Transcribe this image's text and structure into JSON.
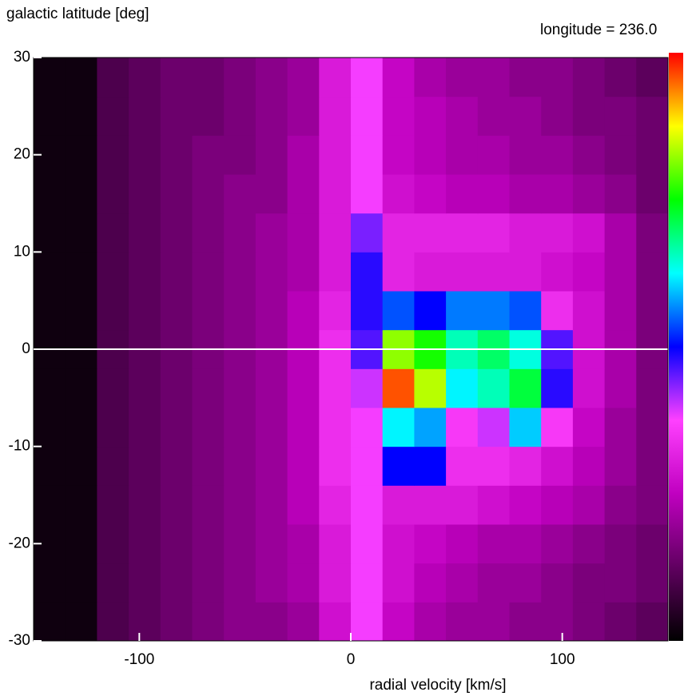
{
  "chart_data": {
    "type": "heatmap",
    "title": "longitude = 236.0",
    "y_label": "galactic latitude [deg]",
    "x_label": "radial velocity [km/s]",
    "title_color": "#1a1aff",
    "xlim": [
      -150,
      150
    ],
    "ylim": [
      -30,
      30
    ],
    "xticks": [
      -100,
      0,
      100
    ],
    "yticks": [
      -30,
      -20,
      -10,
      0,
      10,
      20,
      30
    ],
    "hline": 0,
    "hline_color": "#ffffff",
    "zlim": [
      0,
      100
    ],
    "colormap": [
      "#000000",
      "#600060",
      "#c000c0",
      "#ff40ff",
      "#0000ff",
      "#00ffff",
      "#00ff00",
      "#ffff00",
      "#ff0000"
    ],
    "xbins": [
      -150,
      -135,
      -120,
      -105,
      -90,
      -75,
      -60,
      -45,
      -30,
      -15,
      0,
      15,
      30,
      45,
      60,
      75,
      90,
      105,
      120,
      135,
      150
    ],
    "ybins": [
      -30,
      -26,
      -22,
      -18,
      -14,
      -10,
      -6,
      -2,
      2,
      6,
      10,
      14,
      18,
      22,
      26,
      30
    ],
    "z": [
      [
        2,
        2,
        10,
        12,
        14,
        16,
        18,
        18,
        20,
        28,
        38,
        26,
        22,
        20,
        20,
        18,
        18,
        16,
        14,
        12
      ],
      [
        2,
        2,
        10,
        12,
        14,
        16,
        18,
        20,
        22,
        30,
        38,
        28,
        24,
        22,
        20,
        20,
        18,
        16,
        16,
        14
      ],
      [
        2,
        2,
        10,
        12,
        14,
        16,
        18,
        20,
        22,
        30,
        38,
        28,
        26,
        24,
        22,
        22,
        20,
        18,
        16,
        14
      ],
      [
        2,
        2,
        10,
        12,
        14,
        16,
        18,
        20,
        24,
        32,
        38,
        30,
        30,
        30,
        28,
        26,
        24,
        22,
        18,
        16
      ],
      [
        2,
        2,
        10,
        12,
        14,
        16,
        18,
        20,
        24,
        34,
        38,
        50,
        50,
        34,
        34,
        32,
        28,
        24,
        20,
        16
      ],
      [
        2,
        2,
        10,
        12,
        14,
        16,
        18,
        20,
        24,
        34,
        38,
        62,
        58,
        36,
        40,
        60,
        36,
        26,
        20,
        16
      ],
      [
        2,
        2,
        10,
        12,
        14,
        16,
        18,
        20,
        24,
        34,
        40,
        96,
        84,
        62,
        66,
        72,
        48,
        28,
        22,
        16
      ],
      [
        2,
        2,
        10,
        12,
        14,
        16,
        18,
        20,
        24,
        34,
        46,
        82,
        76,
        66,
        70,
        64,
        46,
        28,
        22,
        16
      ],
      [
        2,
        2,
        10,
        12,
        14,
        16,
        18,
        20,
        24,
        32,
        48,
        54,
        50,
        56,
        56,
        54,
        34,
        28,
        22,
        16
      ],
      [
        2,
        2,
        10,
        12,
        14,
        16,
        18,
        20,
        22,
        30,
        48,
        32,
        30,
        30,
        30,
        30,
        28,
        26,
        22,
        16
      ],
      [
        2,
        2,
        10,
        12,
        14,
        16,
        18,
        20,
        22,
        30,
        44,
        32,
        32,
        32,
        32,
        30,
        30,
        28,
        22,
        16
      ],
      [
        2,
        2,
        10,
        12,
        14,
        16,
        18,
        18,
        22,
        30,
        38,
        28,
        26,
        24,
        24,
        22,
        22,
        20,
        18,
        14
      ],
      [
        2,
        2,
        10,
        12,
        14,
        16,
        16,
        18,
        22,
        30,
        38,
        26,
        24,
        22,
        22,
        20,
        20,
        18,
        16,
        14
      ],
      [
        2,
        2,
        10,
        12,
        14,
        14,
        16,
        18,
        20,
        30,
        38,
        26,
        24,
        22,
        20,
        20,
        18,
        16,
        16,
        14
      ],
      [
        2,
        2,
        10,
        12,
        14,
        14,
        16,
        18,
        20,
        30,
        38,
        26,
        22,
        20,
        20,
        18,
        18,
        16,
        14,
        12
      ]
    ]
  }
}
